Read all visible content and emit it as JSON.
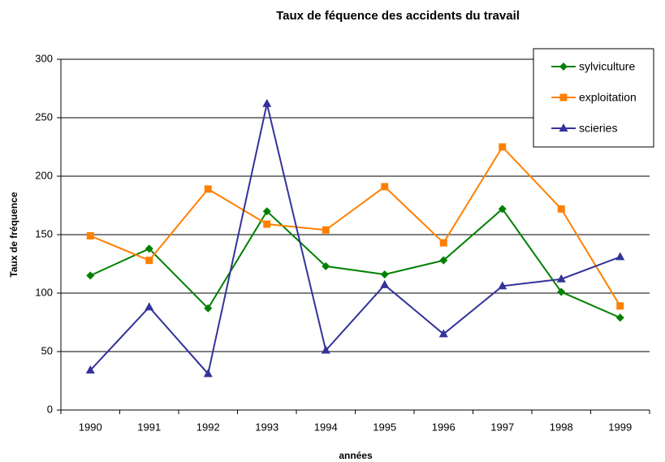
{
  "chart_data": {
    "type": "line",
    "title": "Taux de féquence des accidents du travail",
    "x_label": "années",
    "y_label": "Taux de fréquence",
    "categories": [
      "1990",
      "1991",
      "1992",
      "1993",
      "1994",
      "1995",
      "1996",
      "1997",
      "1998",
      "1999"
    ],
    "series": [
      {
        "name": "sylviculture",
        "color": "#008000",
        "marker": "diamond",
        "values": [
          115,
          138,
          87,
          170,
          123,
          116,
          128,
          172,
          101,
          79
        ]
      },
      {
        "name": "exploitation",
        "color": "#ff8000",
        "marker": "square",
        "values": [
          149,
          128,
          189,
          159,
          154,
          191,
          143,
          225,
          172,
          89
        ]
      },
      {
        "name": "scieries",
        "color": "#333399",
        "marker": "triangle",
        "values": [
          34,
          88,
          31,
          262,
          51,
          107,
          65,
          106,
          112,
          131
        ]
      }
    ],
    "ylim": [
      0,
      300
    ],
    "yticks": [
      0,
      50,
      100,
      150,
      200,
      250,
      300
    ],
    "grid": true,
    "legend": "top-right"
  }
}
